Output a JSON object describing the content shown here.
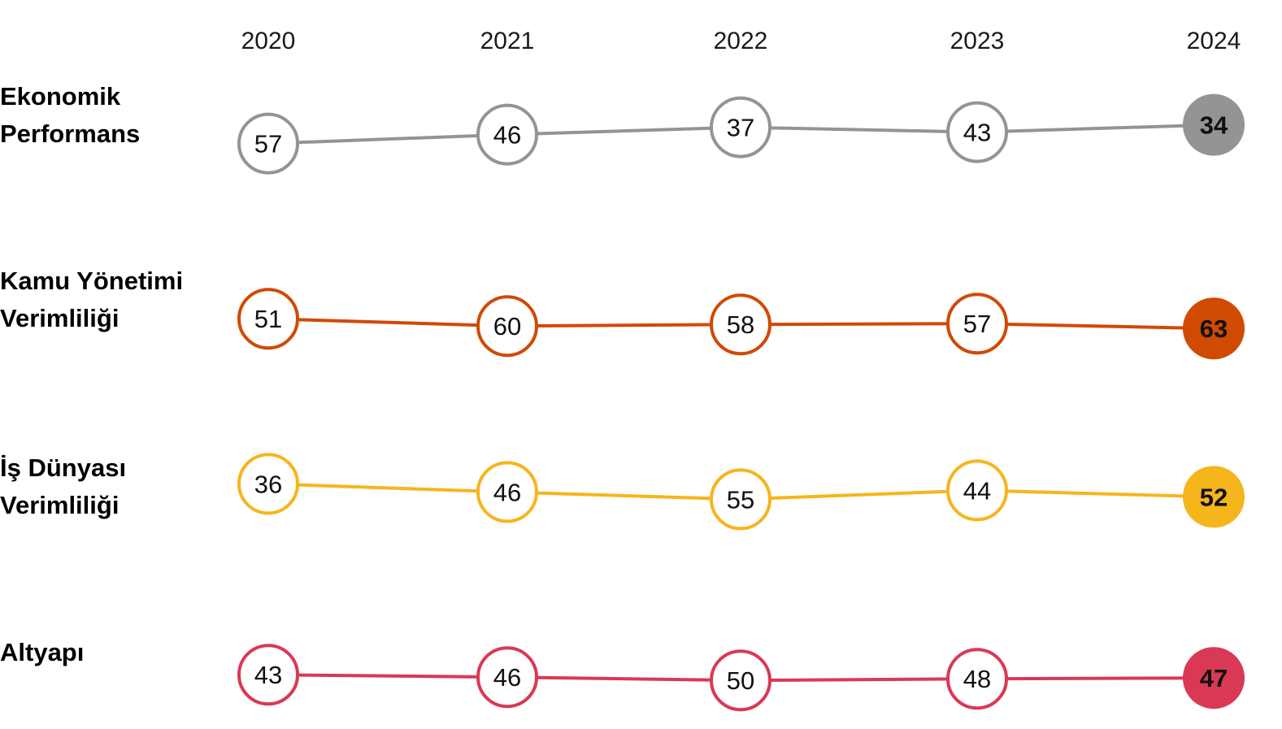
{
  "chart_data": {
    "type": "line",
    "title": "",
    "xlabel": "",
    "ylabel": "",
    "x": [
      "2020",
      "2021",
      "2022",
      "2023",
      "2024"
    ],
    "inverted_rank_axis": true,
    "ylim": [
      30,
      65
    ],
    "grid": false,
    "legend": "none",
    "series": [
      {
        "name_lines": [
          "Ekonomik",
          "Performans"
        ],
        "values": [
          57,
          46,
          37,
          43,
          34
        ],
        "color": "#949494",
        "last_text_color": "#ffffff"
      },
      {
        "name_lines": [
          "Kamu Yönetimi",
          "Verimliliği"
        ],
        "values": [
          51,
          60,
          58,
          57,
          63
        ],
        "color": "#d04a02",
        "last_text_color": "#ffffff"
      },
      {
        "name_lines": [
          "İş Dünyası",
          "Verimliliği"
        ],
        "values": [
          36,
          46,
          55,
          44,
          52
        ],
        "color": "#f5b51c",
        "last_text_color": "#000000"
      },
      {
        "name_lines": [
          "Altyapı"
        ],
        "values": [
          43,
          46,
          50,
          48,
          47
        ],
        "color": "#d93954",
        "last_text_color": "#ffffff"
      }
    ]
  }
}
